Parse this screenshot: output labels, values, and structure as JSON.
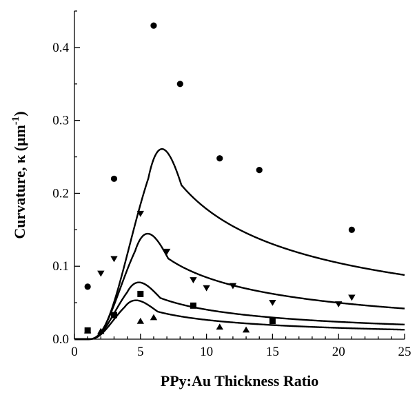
{
  "chart_data": {
    "type": "scatter",
    "title": "",
    "xlabel": "PPy:Au Thickness Ratio",
    "ylabel": {
      "main": "Curvature, κ (μm",
      "superscript": "-1",
      "close": ")"
    },
    "xlim": [
      0,
      25
    ],
    "ylim": [
      0,
      0.45
    ],
    "x_ticks": [
      0,
      5,
      10,
      15,
      20,
      25
    ],
    "x_tick_labels": [
      "0",
      "5",
      "10",
      "15",
      "20",
      "25"
    ],
    "y_ticks": [
      0.0,
      0.1,
      0.2,
      0.3,
      0.4
    ],
    "y_tick_labels": [
      "0.0",
      "0.1",
      "0.2",
      "0.3",
      "0.4"
    ],
    "grid": false,
    "series": [
      {
        "marker": "circle",
        "points": [
          [
            1,
            0.072
          ],
          [
            3,
            0.22
          ],
          [
            6,
            0.43
          ],
          [
            8,
            0.35
          ],
          [
            11,
            0.248
          ],
          [
            14,
            0.232
          ],
          [
            21,
            0.15
          ]
        ]
      },
      {
        "marker": "triangle-down",
        "points": [
          [
            2,
            0.09
          ],
          [
            3,
            0.11
          ],
          [
            5,
            0.172
          ],
          [
            7,
            0.12
          ],
          [
            9,
            0.081
          ],
          [
            10,
            0.07
          ],
          [
            12,
            0.073
          ],
          [
            15,
            0.05
          ],
          [
            20,
            0.048
          ],
          [
            21,
            0.057
          ]
        ]
      },
      {
        "marker": "triangle-up",
        "points": [
          [
            1,
            0.012
          ],
          [
            2,
            0.011
          ],
          [
            5,
            0.025
          ],
          [
            6,
            0.03
          ],
          [
            11,
            0.017
          ],
          [
            13,
            0.013
          ]
        ]
      },
      {
        "marker": "square",
        "points": [
          [
            1,
            0.012
          ],
          [
            3,
            0.033
          ],
          [
            5,
            0.062
          ],
          [
            9,
            0.046
          ],
          [
            15,
            0.025
          ]
        ]
      }
    ],
    "model_curves": [
      {
        "peak_x": 5.6,
        "peak_y": 0.301,
        "end_y": 0.088
      },
      {
        "peak_x": 4.6,
        "peak_y": 0.165,
        "end_y": 0.042
      },
      {
        "peak_x": 4.0,
        "peak_y": 0.088,
        "end_y": 0.02
      },
      {
        "peak_x": 3.8,
        "peak_y": 0.06,
        "end_y": 0.013
      }
    ]
  }
}
